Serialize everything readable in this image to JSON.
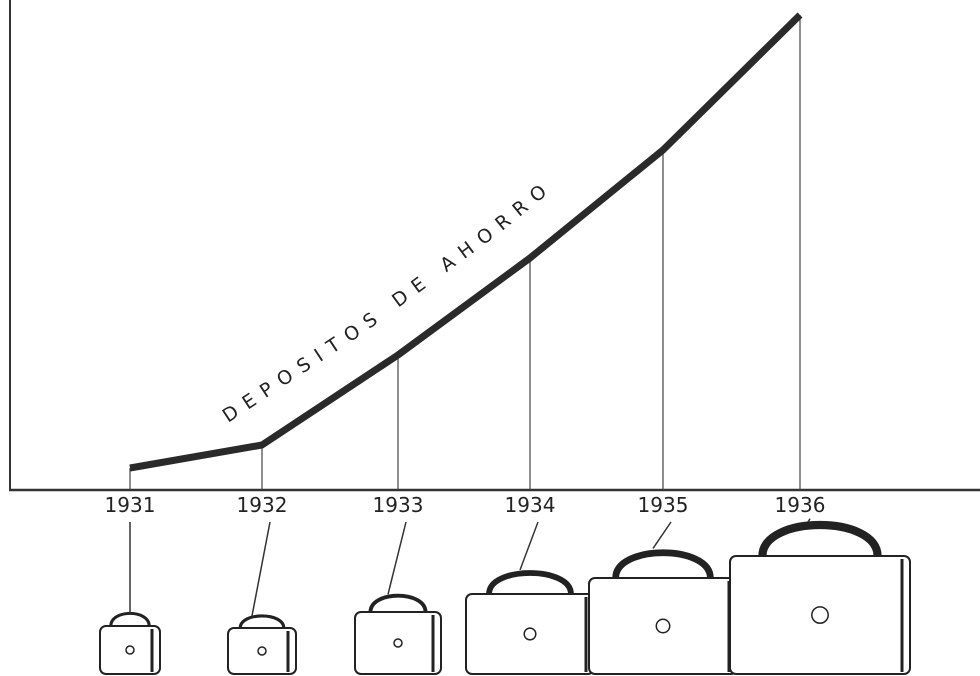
{
  "chart_data": {
    "type": "line",
    "label": "DEPOSITOS DE AHORRO",
    "categories": [
      "1931",
      "1932",
      "1933",
      "1934",
      "1935",
      "1936"
    ],
    "values": [
      22,
      45,
      135,
      232,
      340,
      475
    ],
    "color": "#2a2a2a",
    "ylim": [
      0,
      480
    ]
  }
}
